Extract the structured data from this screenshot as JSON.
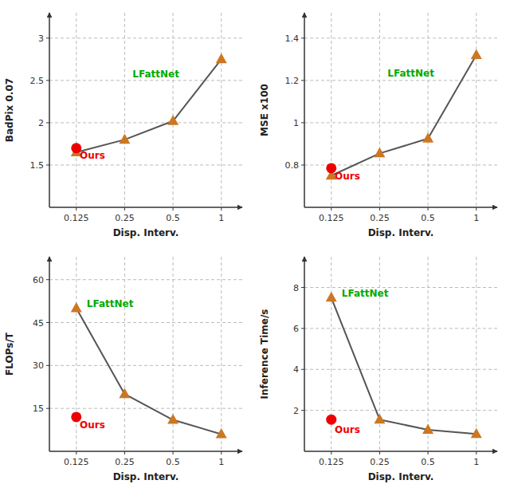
{
  "chart_data": [
    {
      "type": "line",
      "xlabel": "Disp. Interv.",
      "ylabel": "BadPix 0.07",
      "log": "x",
      "grid": true,
      "x": [
        0.125,
        0.25,
        0.5,
        1.0
      ],
      "xlim": [
        0.085,
        1.35
      ],
      "xticks": [
        0.125,
        0.25,
        0.5,
        1
      ],
      "ylim": [
        1.0,
        3.3
      ],
      "yticks": [
        1.5,
        2,
        2.5,
        3
      ],
      "series": [
        {
          "name": "LFattNet",
          "type": "line",
          "marker": "triangle",
          "color": "#555555",
          "colors": [
            "#CC7722",
            "#CC7722",
            "#CC7722",
            "#CC7722"
          ],
          "values": [
            1.65,
            1.8,
            2.02,
            2.75
          ]
        },
        {
          "name": "Ours",
          "type": "scatter",
          "marker": "circle",
          "color": "#EE0000",
          "values": [
            1.7,
            null,
            null,
            null
          ]
        }
      ],
      "annotations": [
        {
          "text": "Ours",
          "x": 0.13125,
          "y": 1.66,
          "color": "#EE0000"
        },
        {
          "text": "LFattNet",
          "x": 0.28,
          "y": 2.62,
          "color": "#00AA00"
        }
      ]
    },
    {
      "type": "line",
      "xlabel": "Disp. Interv.",
      "ylabel": "MSE x100",
      "log": "x",
      "grid": true,
      "x": [
        0.125,
        0.25,
        0.5,
        1.0
      ],
      "xlim": [
        0.085,
        1.35
      ],
      "xticks": [
        0.125,
        0.25,
        0.5,
        1
      ],
      "ylim": [
        0.6,
        1.52
      ],
      "yticks": [
        0.8,
        1,
        1.2,
        1.4
      ],
      "series": [
        {
          "name": "LFattNet",
          "type": "line",
          "marker": "triangle",
          "color": "#555555",
          "colors": [
            "#CC7722",
            "#CC7722",
            "#CC7722",
            "#CC7722"
          ],
          "values": [
            0.75,
            0.855,
            0.925,
            1.32
          ]
        },
        {
          "name": "Ours",
          "type": "scatter",
          "marker": "circle",
          "color": "#EE0000",
          "values": [
            0.785,
            null,
            null,
            null
          ]
        }
      ],
      "annotations": [
        {
          "text": "Ours",
          "x": 0.13125,
          "y": 0.765,
          "color": "#EE0000"
        },
        {
          "text": "LFattNet",
          "x": 0.28,
          "y": 1.25,
          "color": "#00AA00"
        }
      ]
    },
    {
      "type": "line",
      "xlabel": "Disp. Interv.",
      "ylabel": "FLOPs/T",
      "log": "x",
      "grid": true,
      "x": [
        0.125,
        0.25,
        0.5,
        1.0
      ],
      "xlim": [
        0.085,
        1.35
      ],
      "xticks": [
        0.125,
        0.25,
        0.5,
        1
      ],
      "ylim": [
        0,
        68
      ],
      "yticks": [
        15,
        30,
        45,
        60
      ],
      "series": [
        {
          "name": "LFattNet",
          "type": "line",
          "marker": "triangle",
          "color": "#555555",
          "colors": [
            "#CC7722",
            "#CC7722",
            "#CC7722",
            "#CC7722"
          ],
          "values": [
            50,
            20,
            11,
            6
          ]
        },
        {
          "name": "Ours",
          "type": "scatter",
          "marker": "circle",
          "color": "#EE0000",
          "values": [
            12,
            null,
            null,
            null
          ]
        }
      ],
      "annotations": [
        {
          "text": "Ours",
          "x": 0.13125,
          "y": 10.5,
          "color": "#EE0000"
        },
        {
          "text": "LFattNet",
          "x": 0.145,
          "y": 53,
          "color": "#00AA00"
        }
      ]
    },
    {
      "type": "line",
      "xlabel": "Disp. Interv.",
      "ylabel": "Inference Time/s",
      "log": "x",
      "grid": true,
      "x": [
        0.125,
        0.25,
        0.5,
        1.0
      ],
      "xlim": [
        0.085,
        1.35
      ],
      "xticks": [
        0.125,
        0.25,
        0.5,
        1
      ],
      "ylim": [
        0,
        9.5
      ],
      "yticks": [
        2,
        4,
        6,
        8
      ],
      "series": [
        {
          "name": "LFattNet",
          "type": "line",
          "marker": "triangle",
          "color": "#555555",
          "colors": [
            "#CC7722",
            "#CC7722",
            "#CC7722",
            "#CC7722"
          ],
          "values": [
            7.5,
            1.55,
            1.05,
            0.85
          ]
        },
        {
          "name": "Ours",
          "type": "scatter",
          "marker": "circle",
          "color": "#EE0000",
          "values": [
            1.55,
            null,
            null,
            null
          ]
        }
      ],
      "annotations": [
        {
          "text": "Ours",
          "x": 0.13125,
          "y": 1.25,
          "color": "#EE0000"
        },
        {
          "text": "LFattNet",
          "x": 0.145,
          "y": 7.9,
          "color": "#00AA00"
        }
      ]
    }
  ]
}
